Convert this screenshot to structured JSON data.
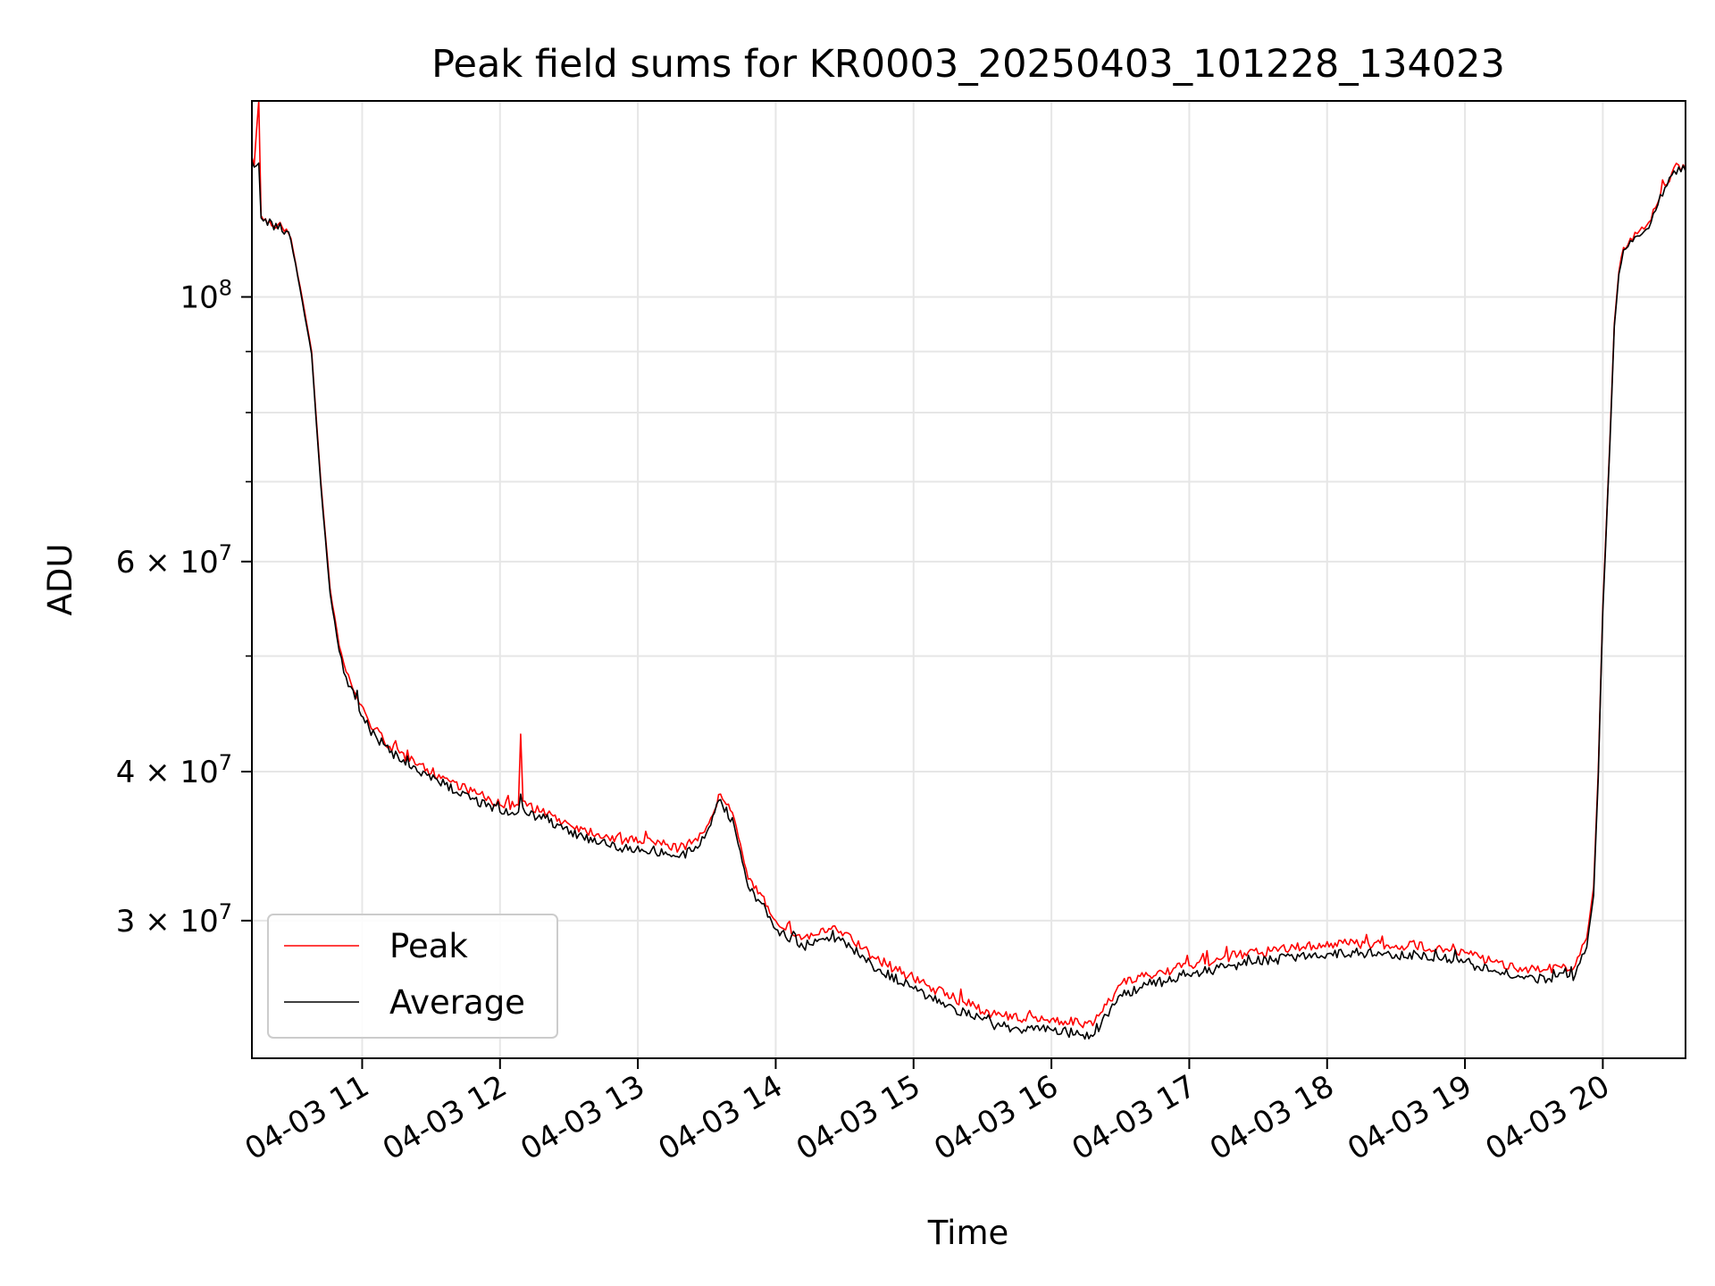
{
  "chart_data": {
    "type": "line",
    "title": "Peak field sums for KR0003_20250403_101228_134023",
    "xlabel": "Time",
    "ylabel": "ADU",
    "yscale": "log",
    "xlim": [
      "2025-04-03 10:12",
      "2025-04-03 20:36"
    ],
    "ylim": [
      23000000,
      146000000
    ],
    "grid": true,
    "legend": "lower-left",
    "x_ticks": [
      {
        "time": "2025-04-03 11:00",
        "label": "04-03 11"
      },
      {
        "time": "2025-04-03 12:00",
        "label": "04-03 12"
      },
      {
        "time": "2025-04-03 13:00",
        "label": "04-03 13"
      },
      {
        "time": "2025-04-03 14:00",
        "label": "04-03 14"
      },
      {
        "time": "2025-04-03 15:00",
        "label": "04-03 15"
      },
      {
        "time": "2025-04-03 16:00",
        "label": "04-03 16"
      },
      {
        "time": "2025-04-03 17:00",
        "label": "04-03 17"
      },
      {
        "time": "2025-04-03 18:00",
        "label": "04-03 18"
      },
      {
        "time": "2025-04-03 19:00",
        "label": "04-03 19"
      },
      {
        "time": "2025-04-03 20:00",
        "label": "04-03 20"
      }
    ],
    "y_major_ticks": [
      {
        "value": 100000000,
        "mant": "",
        "exp": "8"
      },
      {
        "value": 60000000,
        "mant": "6",
        "exp": "7"
      },
      {
        "value": 40000000,
        "mant": "4",
        "exp": "7"
      },
      {
        "value": 30000000,
        "mant": "3",
        "exp": "7"
      }
    ],
    "y_minor_ticks": [
      50000000,
      70000000,
      80000000,
      90000000
    ],
    "series": [
      {
        "name": "Peak",
        "color": "#ff0000",
        "times": [
          "2025-04-03 10:12",
          "2025-04-03 10:13",
          "2025-04-03 10:15",
          "2025-04-03 10:16",
          "2025-04-03 10:17",
          "2025-04-03 10:27",
          "2025-04-03 10:29",
          "2025-04-03 10:33",
          "2025-04-03 10:38",
          "2025-04-03 10:42",
          "2025-04-03 10:46",
          "2025-04-03 10:50",
          "2025-04-03 10:53",
          "2025-04-03 10:57",
          "2025-04-03 11:03",
          "2025-04-03 11:12",
          "2025-04-03 11:24",
          "2025-04-03 11:36",
          "2025-04-03 11:48",
          "2025-04-03 12:00",
          "2025-04-03 12:08",
          "2025-04-03 12:09",
          "2025-04-03 12:10",
          "2025-04-03 12:18",
          "2025-04-03 12:36",
          "2025-04-03 12:54",
          "2025-04-03 13:06",
          "2025-04-03 13:18",
          "2025-04-03 13:26",
          "2025-04-03 13:30",
          "2025-04-03 13:36",
          "2025-04-03 13:42",
          "2025-04-03 13:48",
          "2025-04-03 13:54",
          "2025-04-03 14:00",
          "2025-04-03 14:12",
          "2025-04-03 14:24",
          "2025-04-03 14:30",
          "2025-04-03 14:42",
          "2025-04-03 15:00",
          "2025-04-03 15:18",
          "2025-04-03 15:36",
          "2025-04-03 15:48",
          "2025-04-03 16:00",
          "2025-04-03 16:12",
          "2025-04-03 16:18",
          "2025-04-03 16:24",
          "2025-04-03 16:30",
          "2025-04-03 16:42",
          "2025-04-03 17:00",
          "2025-04-03 17:18",
          "2025-04-03 17:36",
          "2025-04-03 17:54",
          "2025-04-03 18:12",
          "2025-04-03 18:30",
          "2025-04-03 18:48",
          "2025-04-03 19:00",
          "2025-04-03 19:12",
          "2025-04-03 19:24",
          "2025-04-03 19:36",
          "2025-04-03 19:48",
          "2025-04-03 19:53",
          "2025-04-03 19:56",
          "2025-04-03 19:58",
          "2025-04-03 20:00",
          "2025-04-03 20:03",
          "2025-04-03 20:05",
          "2025-04-03 20:07",
          "2025-04-03 20:09",
          "2025-04-03 20:12",
          "2025-04-03 20:15",
          "2025-04-03 20:18",
          "2025-04-03 20:21",
          "2025-04-03 20:24",
          "2025-04-03 20:27",
          "2025-04-03 20:30",
          "2025-04-03 20:33",
          "2025-04-03 20:36"
        ],
        "values": [
          131000000,
          129000000,
          146000000,
          117000000,
          116000000,
          114000000,
          112000000,
          102000000,
          90000000,
          70000000,
          57000000,
          51000000,
          48500000,
          46500000,
          44000000,
          42000000,
          40500000,
          39500000,
          38500000,
          37500000,
          37500000,
          43000000,
          37800000,
          37000000,
          35800000,
          35000000,
          35000000,
          34500000,
          35000000,
          36000000,
          38300000,
          36500000,
          32500000,
          31500000,
          30000000,
          29000000,
          29500000,
          29300000,
          28000000,
          26800000,
          25800000,
          25000000,
          24800000,
          24800000,
          24600000,
          24500000,
          25500000,
          26500000,
          27000000,
          27500000,
          28000000,
          28300000,
          28600000,
          28700000,
          28600000,
          28500000,
          28200000,
          27700000,
          27400000,
          27300000,
          27500000,
          29000000,
          32000000,
          40000000,
          55000000,
          75000000,
          95000000,
          105000000,
          110000000,
          112000000,
          113000000,
          114000000,
          116000000,
          120000000,
          124000000,
          127000000,
          129000000,
          128000000
        ]
      },
      {
        "name": "Average",
        "color": "#000000",
        "times": [
          "2025-04-03 10:12",
          "2025-04-03 10:13",
          "2025-04-03 10:15",
          "2025-04-03 10:16",
          "2025-04-03 10:17",
          "2025-04-03 10:27",
          "2025-04-03 10:29",
          "2025-04-03 10:33",
          "2025-04-03 10:38",
          "2025-04-03 10:42",
          "2025-04-03 10:46",
          "2025-04-03 10:50",
          "2025-04-03 10:53",
          "2025-04-03 10:57",
          "2025-04-03 11:03",
          "2025-04-03 11:12",
          "2025-04-03 11:24",
          "2025-04-03 11:36",
          "2025-04-03 11:48",
          "2025-04-03 12:00",
          "2025-04-03 12:08",
          "2025-04-03 12:09",
          "2025-04-03 12:10",
          "2025-04-03 12:18",
          "2025-04-03 12:36",
          "2025-04-03 12:54",
          "2025-04-03 13:06",
          "2025-04-03 13:18",
          "2025-04-03 13:26",
          "2025-04-03 13:30",
          "2025-04-03 13:36",
          "2025-04-03 13:42",
          "2025-04-03 13:48",
          "2025-04-03 13:54",
          "2025-04-03 14:00",
          "2025-04-03 14:12",
          "2025-04-03 14:24",
          "2025-04-03 14:30",
          "2025-04-03 14:42",
          "2025-04-03 15:00",
          "2025-04-03 15:18",
          "2025-04-03 15:36",
          "2025-04-03 15:48",
          "2025-04-03 16:00",
          "2025-04-03 16:12",
          "2025-04-03 16:18",
          "2025-04-03 16:24",
          "2025-04-03 16:30",
          "2025-04-03 16:42",
          "2025-04-03 17:00",
          "2025-04-03 17:18",
          "2025-04-03 17:36",
          "2025-04-03 17:54",
          "2025-04-03 18:12",
          "2025-04-03 18:30",
          "2025-04-03 18:48",
          "2025-04-03 19:00",
          "2025-04-03 19:12",
          "2025-04-03 19:24",
          "2025-04-03 19:36",
          "2025-04-03 19:48",
          "2025-04-03 19:53",
          "2025-04-03 19:56",
          "2025-04-03 19:58",
          "2025-04-03 20:00",
          "2025-04-03 20:03",
          "2025-04-03 20:05",
          "2025-04-03 20:07",
          "2025-04-03 20:09",
          "2025-04-03 20:12",
          "2025-04-03 20:15",
          "2025-04-03 20:18",
          "2025-04-03 20:21",
          "2025-04-03 20:24",
          "2025-04-03 20:27",
          "2025-04-03 20:30",
          "2025-04-03 20:33",
          "2025-04-03 20:36"
        ],
        "values": [
          130000000,
          128500000,
          129500000,
          116500000,
          115800000,
          113600000,
          111500000,
          101500000,
          89500000,
          69500000,
          56500000,
          50500000,
          48000000,
          46000000,
          43500000,
          41500000,
          40000000,
          39000000,
          38000000,
          37000000,
          37000000,
          38300000,
          37300000,
          36500000,
          35300000,
          34500000,
          34400000,
          33900000,
          34500000,
          35600000,
          37900000,
          36000000,
          32000000,
          31000000,
          29500000,
          28500000,
          29000000,
          28800000,
          27500000,
          26300000,
          25300000,
          24500000,
          24300000,
          24300000,
          24100000,
          24000000,
          25000000,
          26000000,
          26500000,
          27000000,
          27500000,
          27800000,
          28100000,
          28200000,
          28100000,
          28000000,
          27700000,
          27200000,
          26900000,
          26800000,
          27000000,
          28500000,
          31500000,
          39500000,
          54500000,
          74500000,
          94500000,
          104500000,
          109500000,
          111500000,
          112500000,
          113500000,
          115500000,
          119500000,
          123500000,
          126500000,
          128500000,
          127500000
        ]
      }
    ]
  }
}
